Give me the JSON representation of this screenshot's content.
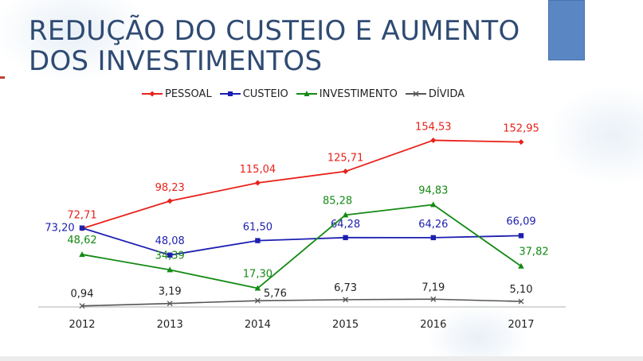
{
  "slide": {
    "title_line1": "REDUÇÃO DO CUSTEIO E AUMENTO",
    "title_line2": "DOS INVESTIMENTOS"
  },
  "colors": {
    "pessoal": "#e8211a",
    "custeio": "#1c1fb0",
    "investimento": "#138a13",
    "divida": "#555555",
    "title": "#2f4b73",
    "accent_box": "#5a86c4"
  },
  "chart_data": {
    "type": "line",
    "title": "",
    "xlabel": "",
    "ylabel": "",
    "ylim": [
      0,
      160
    ],
    "grid": false,
    "legend_position": "top",
    "categories": [
      "2012",
      "2013",
      "2014",
      "2015",
      "2016",
      "2017"
    ],
    "series": [
      {
        "name": "PESSOAL",
        "marker": "diamond",
        "values": [
          72.71,
          98.23,
          115.04,
          125.71,
          154.53,
          152.95
        ],
        "labels": [
          "72,71",
          "98,23",
          "115,04",
          "125,71",
          "154,53",
          "152,95"
        ]
      },
      {
        "name": "CUSTEIO",
        "marker": "square",
        "values": [
          73.2,
          48.08,
          61.5,
          64.28,
          64.26,
          66.09
        ],
        "labels": [
          "73,20",
          "48,08",
          "61,50",
          "64,28",
          "64,26",
          "66,09"
        ]
      },
      {
        "name": "INVESTIMENTO",
        "marker": "triangle",
        "values": [
          48.62,
          34.39,
          17.3,
          85.28,
          94.83,
          37.82
        ],
        "labels": [
          "48,62",
          "34,39",
          "17,30",
          "85,28",
          "94,83",
          "37,82"
        ]
      },
      {
        "name": "DÍVIDA",
        "marker": "x",
        "values": [
          0.94,
          3.19,
          5.76,
          6.73,
          7.19,
          5.1
        ],
        "labels": [
          "0,94",
          "3,19",
          "5,76",
          "6,73",
          "7,19",
          "5,10"
        ]
      }
    ]
  }
}
